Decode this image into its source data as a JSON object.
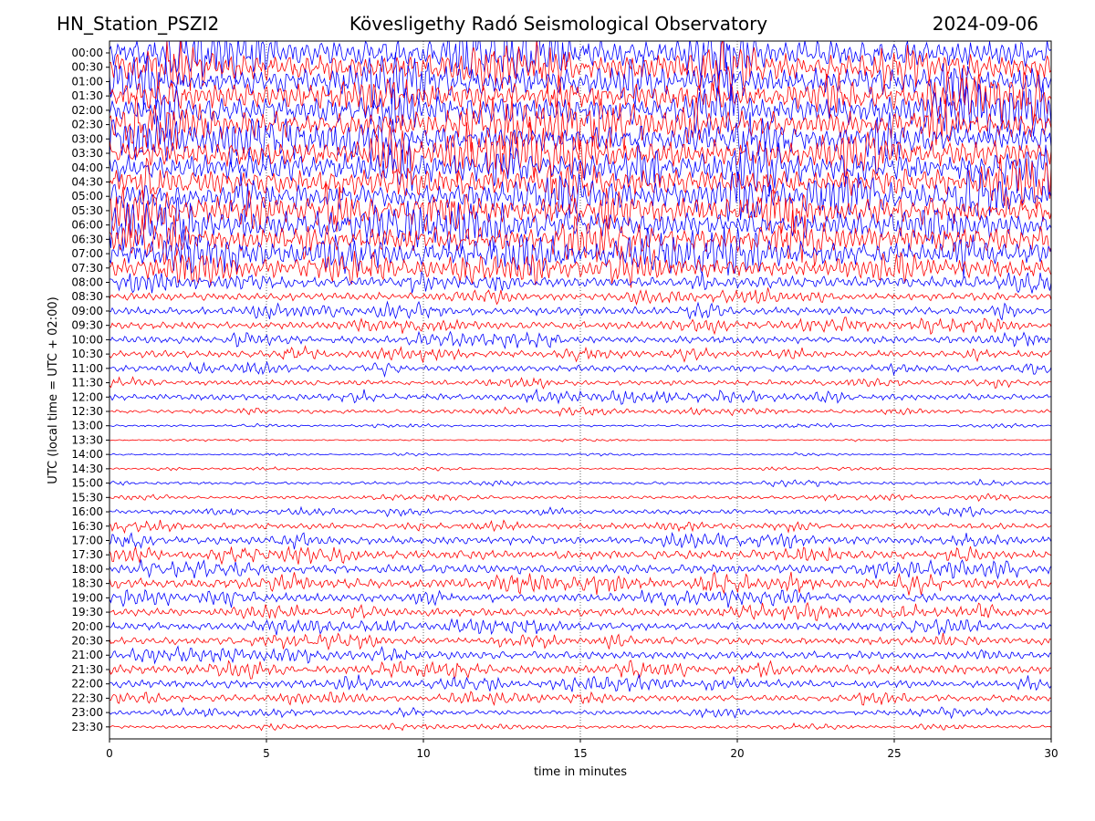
{
  "header": {
    "station": "HN_Station_PSZI2",
    "observatory": "Kövesligethy Radó Seismological Observatory",
    "date": "2024-09-06"
  },
  "chart_data": {
    "type": "line",
    "xlabel": "time in minutes",
    "ylabel": "UTC (local time = UTC + 02:00)",
    "xlim": [
      0,
      30
    ],
    "x_ticks": [
      0,
      5,
      10,
      15,
      20,
      25,
      30
    ],
    "grid": "vertical dotted at x ticks",
    "trace_colors": [
      "#0000ff",
      "#ff0000"
    ],
    "rows": [
      "00:00",
      "00:30",
      "01:00",
      "01:30",
      "02:00",
      "02:30",
      "03:00",
      "03:30",
      "04:00",
      "04:30",
      "05:00",
      "05:30",
      "06:00",
      "06:30",
      "07:00",
      "07:30",
      "08:00",
      "08:30",
      "09:00",
      "09:30",
      "10:00",
      "10:30",
      "11:00",
      "11:30",
      "12:00",
      "12:30",
      "13:00",
      "13:30",
      "14:00",
      "14:30",
      "15:00",
      "15:30",
      "16:00",
      "16:30",
      "17:00",
      "17:30",
      "18:00",
      "18:30",
      "19:00",
      "19:30",
      "20:00",
      "20:30",
      "21:00",
      "21:30",
      "22:00",
      "22:30",
      "23:00",
      "23:30"
    ],
    "row_amplitude": [
      1.0,
      1.0,
      1.0,
      1.0,
      1.0,
      1.0,
      1.0,
      1.0,
      1.0,
      1.0,
      1.0,
      1.0,
      1.0,
      0.95,
      0.9,
      0.7,
      0.45,
      0.3,
      0.3,
      0.28,
      0.28,
      0.26,
      0.25,
      0.2,
      0.25,
      0.15,
      0.08,
      0.05,
      0.06,
      0.07,
      0.12,
      0.12,
      0.18,
      0.22,
      0.3,
      0.33,
      0.33,
      0.38,
      0.33,
      0.3,
      0.3,
      0.28,
      0.3,
      0.33,
      0.3,
      0.25,
      0.18,
      0.12
    ]
  }
}
